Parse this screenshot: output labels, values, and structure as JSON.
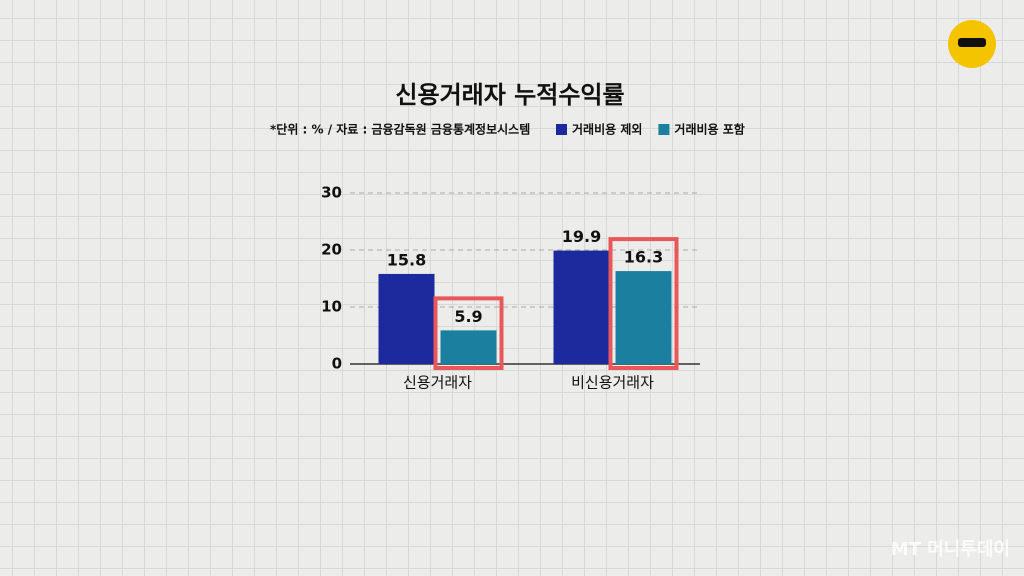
{
  "chart_data": {
    "type": "bar",
    "title": "신용거래자 누적수익률",
    "subtitle": "*단위 : % / 자료 : 금융감독원 금융통계정보시스템",
    "categories": [
      "신용거래자",
      "비신용거래자"
    ],
    "series": [
      {
        "name": "거래비용 제외",
        "color": "#1c2a9e",
        "values": [
          15.8,
          19.9
        ]
      },
      {
        "name": "거래비용 포함",
        "color": "#1b7f9f",
        "values": [
          5.9,
          16.3
        ]
      }
    ],
    "ylim": [
      0,
      30
    ],
    "yticks": [
      0,
      10,
      20,
      30
    ],
    "grid": true,
    "highlight_series": 1,
    "highlight_color": "#e8575a",
    "watermark": "MT 머니투데이"
  }
}
